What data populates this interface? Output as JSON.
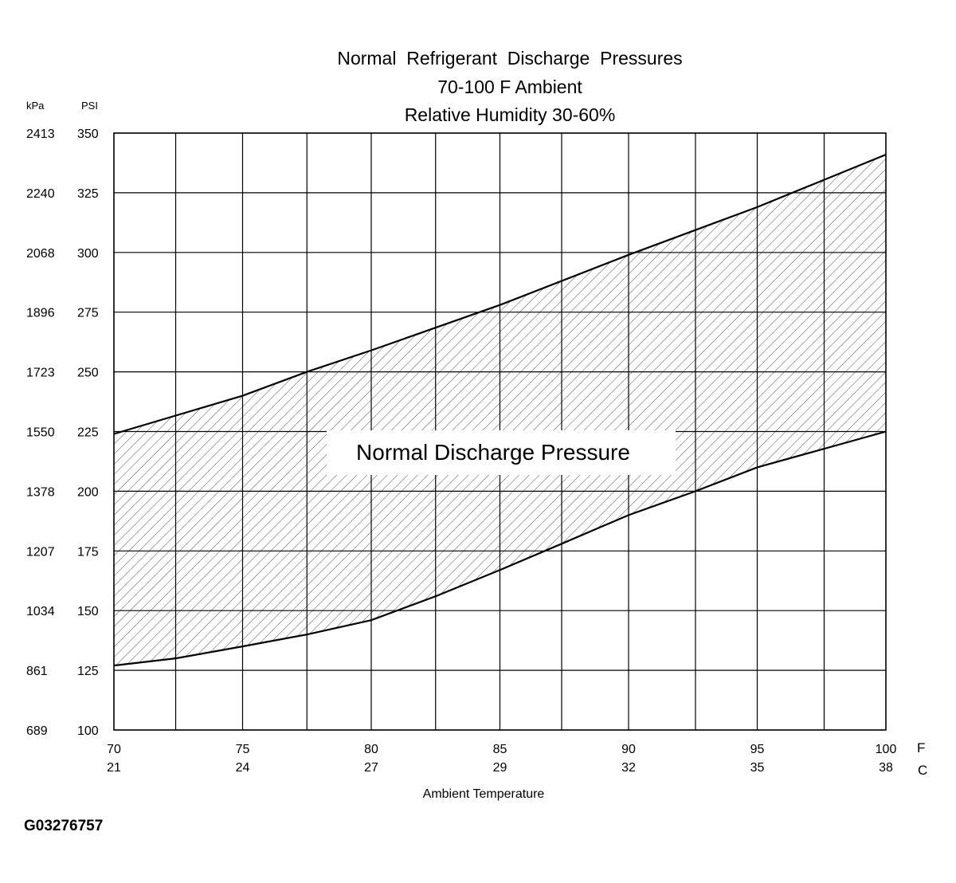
{
  "chart_data": {
    "type": "area",
    "title": [
      "Normal  Refrigerant  Discharge  Pressures",
      "70-100 F Ambient",
      "Relative Humidity 30-60%"
    ],
    "xlabel": "Ambient Temperature",
    "x_unit_primary": "F",
    "x_unit_secondary": "C",
    "x_ticks": [
      {
        "f": 70,
        "c": 21
      },
      {
        "f": 75,
        "c": 24
      },
      {
        "f": 80,
        "c": 27
      },
      {
        "f": 85,
        "c": 29
      },
      {
        "f": 90,
        "c": 32
      },
      {
        "f": 95,
        "c": 35
      },
      {
        "f": 100,
        "c": 38
      }
    ],
    "xlim": [
      70,
      100
    ],
    "y_unit_primary": "PSI",
    "y_unit_secondary": "kPa",
    "y_ticks": [
      {
        "psi": 100,
        "kpa": 689
      },
      {
        "psi": 125,
        "kpa": 861
      },
      {
        "psi": 150,
        "kpa": 1034
      },
      {
        "psi": 175,
        "kpa": 1207
      },
      {
        "psi": 200,
        "kpa": 1378
      },
      {
        "psi": 225,
        "kpa": 1550
      },
      {
        "psi": 250,
        "kpa": 1723
      },
      {
        "psi": 275,
        "kpa": 1896
      },
      {
        "psi": 300,
        "kpa": 2068
      },
      {
        "psi": 325,
        "kpa": 2240
      },
      {
        "psi": 350,
        "kpa": 2413
      }
    ],
    "ylim": [
      100,
      350
    ],
    "grid": true,
    "vertical_grid_x": [
      70,
      72.4,
      75,
      77.5,
      80,
      82.5,
      85,
      87.4,
      90,
      92.6,
      95,
      97.6,
      100
    ],
    "band_label": "Normal Discharge Pressure",
    "series": [
      {
        "role": "upper",
        "x": [
          70,
          75,
          77.5,
          80,
          85,
          90,
          95,
          100
        ],
        "y": [
          224,
          240,
          250,
          259,
          278,
          299,
          319,
          341
        ]
      },
      {
        "role": "lower",
        "x": [
          70,
          72.4,
          75,
          77.5,
          80,
          82.5,
          85,
          87.4,
          90,
          92.6,
          95,
          100
        ],
        "y": [
          127,
          130,
          135,
          140,
          146,
          156,
          167,
          178,
          190,
          200,
          210,
          225
        ]
      }
    ]
  },
  "figure_code": "G03276757"
}
